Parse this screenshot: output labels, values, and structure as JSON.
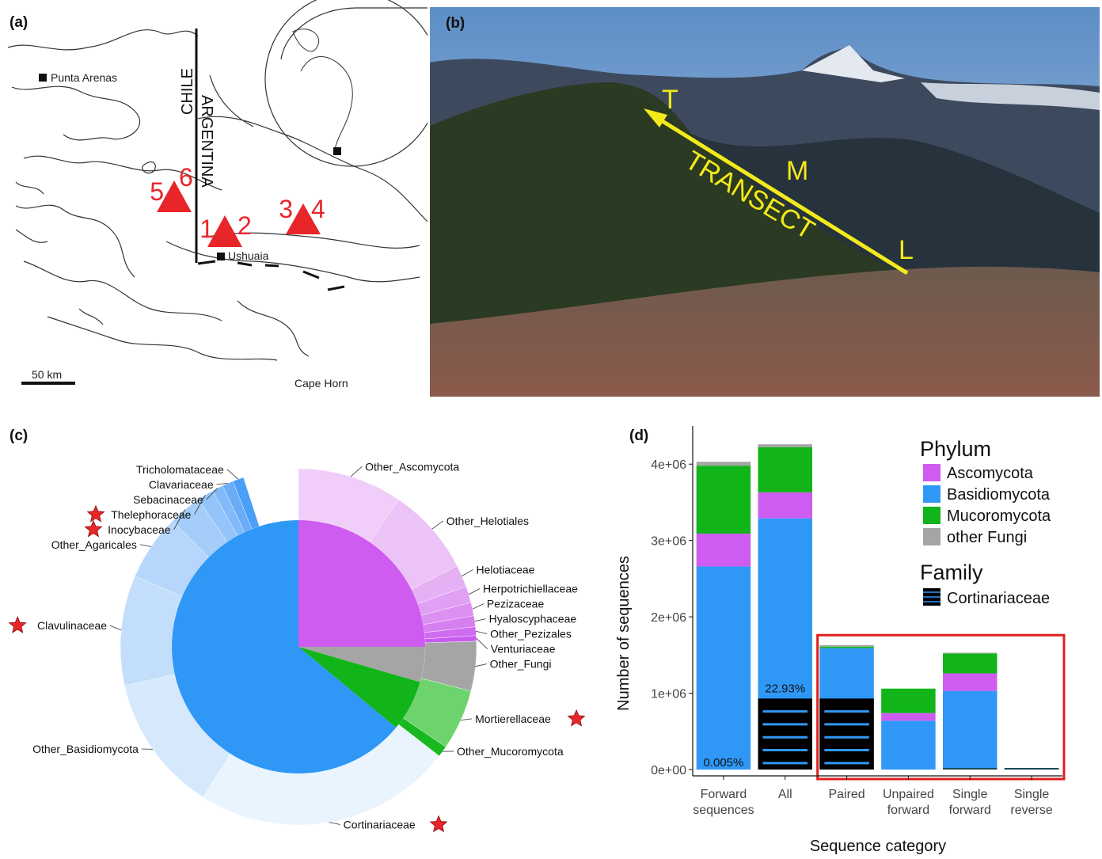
{
  "panel_a": {
    "label": "(a)",
    "places": {
      "punta_arenas": "Punta Arenas",
      "ushuaia": "Ushuaia",
      "cape_horn": "Cape Horn",
      "chile": "CHILE",
      "argentina": "ARGENTINA"
    },
    "scale_bar": "50 km",
    "site_pairs": [
      {
        "left": "5",
        "right": "6"
      },
      {
        "left": "1",
        "right": "2"
      },
      {
        "left": "3",
        "right": "4"
      }
    ],
    "colors": {
      "marker": "#e8262a"
    }
  },
  "panel_b": {
    "label": "(b)",
    "transect_label": "TRANSECT",
    "points": {
      "top": "T",
      "middle": "M",
      "low": "L"
    },
    "colors": {
      "arrow": "#f2ea1a"
    }
  },
  "panel_c": {
    "label": "(c)",
    "inner_ring": [
      {
        "name": "Ascomycota",
        "fraction": 0.25,
        "color": "#cf5cf0"
      },
      {
        "name": "other Fungi",
        "fraction": 0.045,
        "color": "#a5a5a5"
      },
      {
        "name": "Mucoromycota",
        "fraction": 0.065,
        "color": "#11b51a"
      },
      {
        "name": "Basidiomycota",
        "fraction": 0.64,
        "color": "#2f98f7"
      }
    ],
    "outer_ring": [
      {
        "label": "Other_Ascomycota",
        "fraction": 0.095,
        "color": "#f1cdf9",
        "star": false
      },
      {
        "label": "Other_Helotiales",
        "fraction": 0.08,
        "color": "#ecc3f7",
        "star": false
      },
      {
        "label": "Helotiaceae",
        "fraction": 0.02,
        "color": "#e6b0f5",
        "star": false
      },
      {
        "label": "Herpotrichiellaceae",
        "fraction": 0.015,
        "color": "#e0a0f3",
        "star": false
      },
      {
        "label": "Pezizaceae",
        "fraction": 0.012,
        "color": "#db90f2",
        "star": false
      },
      {
        "label": "Hyaloscyphaceae",
        "fraction": 0.01,
        "color": "#d57ff0",
        "star": false
      },
      {
        "label": "Other_Pezizales",
        "fraction": 0.008,
        "color": "#cf6cef",
        "star": false
      },
      {
        "label": "Venturiaceae",
        "fraction": 0.005,
        "color": "#c95aee",
        "star": false
      },
      {
        "label": "Other_Fungi",
        "fraction": 0.045,
        "color": "#a5a5a5",
        "star": false
      },
      {
        "label": "Mortierellaceae",
        "fraction": 0.055,
        "color": "#6dd36d",
        "star": true
      },
      {
        "label": "Other_Mucoromycota",
        "fraction": 0.01,
        "color": "#18b81e",
        "star": false
      },
      {
        "label": "Cortinariaceae",
        "fraction": 0.235,
        "color": "#eaf4fe",
        "star": true
      },
      {
        "label": "Other_Basidiomycota",
        "fraction": 0.125,
        "color": "#d6e9fc",
        "star": false
      },
      {
        "label": "Clavulinaceae",
        "fraction": 0.1,
        "color": "#c3defb",
        "star": true
      },
      {
        "label": "Other_Agaricales",
        "fraction": 0.06,
        "color": "#b6d7fb",
        "star": false
      },
      {
        "label": "Inocybaceae",
        "fraction": 0.03,
        "color": "#a5cdfa",
        "star": true
      },
      {
        "label": "Thelephoraceae",
        "fraction": 0.015,
        "color": "#94c4f9",
        "star": true
      },
      {
        "label": "Sebacinaceae",
        "fraction": 0.01,
        "color": "#81b9f9",
        "star": false
      },
      {
        "label": "Clavariaceae",
        "fraction": 0.01,
        "color": "#6aacf8",
        "star": false
      },
      {
        "label": "Tricholomataceae",
        "fraction": 0.01,
        "color": "#4a9ff8",
        "star": false
      }
    ]
  },
  "panel_d": {
    "label": "(d)",
    "legend": {
      "phylum_title": "Phylum",
      "family_title": "Family",
      "family_entry": "Cortinariaceae"
    },
    "colors": {
      "highlight_box": "#e01e1e",
      "cortinariaceae": "#000000",
      "stripe": "#2f98f7"
    }
  },
  "chart_data": {
    "type": "bar",
    "stacked": true,
    "xlabel": "Sequence category",
    "ylabel": "Number of sequences",
    "categories": [
      "Forward sequences",
      "All",
      "Paired",
      "Unpaired forward",
      "Single forward",
      "Single reverse"
    ],
    "yticks": [
      "0e+00",
      "1e+06",
      "2e+06",
      "3e+06",
      "4e+06"
    ],
    "ylim": [
      0,
      4500000
    ],
    "series": [
      {
        "name": "Basidiomycota",
        "color": "#2f98f7",
        "values": [
          2660000,
          3290000,
          1590000,
          640000,
          1030000,
          10000
        ]
      },
      {
        "name": "Ascomycota",
        "color": "#cf5cf0",
        "values": [
          430000,
          340000,
          0,
          100000,
          230000,
          0
        ]
      },
      {
        "name": "Mucoromycota",
        "color": "#11b51a",
        "values": [
          890000,
          590000,
          20000,
          320000,
          260000,
          0
        ]
      },
      {
        "name": "other Fungi",
        "color": "#a5a5a5",
        "values": [
          50000,
          40000,
          20000,
          0,
          10000,
          0
        ]
      }
    ],
    "cortinariaceae": {
      "name": "Cortinariaceae",
      "values": [
        0,
        930000,
        930000,
        0,
        20000,
        10000
      ]
    },
    "annotations": [
      {
        "category": "Forward sequences",
        "text": "0.005%"
      },
      {
        "category": "All",
        "text": "22.93%"
      }
    ],
    "legend_position": "right"
  }
}
